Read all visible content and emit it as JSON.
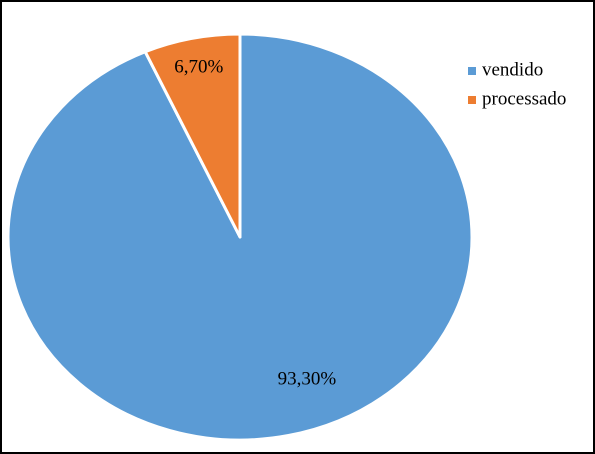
{
  "chart_data": {
    "type": "pie",
    "categories": [
      "vendido",
      "processado"
    ],
    "values": [
      93.3,
      6.7
    ],
    "value_labels": [
      "93,30%",
      "6,70%"
    ],
    "colors": [
      "#5b9bd5",
      "#ed7d31"
    ],
    "legend": "right"
  }
}
